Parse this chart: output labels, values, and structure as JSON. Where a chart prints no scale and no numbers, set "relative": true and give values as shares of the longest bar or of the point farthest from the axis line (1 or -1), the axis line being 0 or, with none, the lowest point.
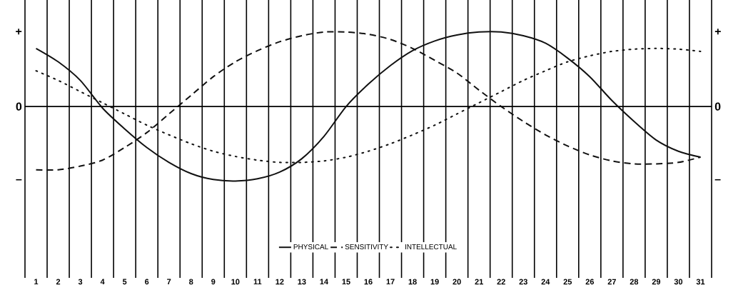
{
  "chart_data": {
    "type": "line",
    "relative": true,
    "categories": [
      "1",
      "2",
      "3",
      "4",
      "5",
      "6",
      "7",
      "8",
      "9",
      "10",
      "11",
      "12",
      "13",
      "14",
      "15",
      "16",
      "17",
      "18",
      "19",
      "20",
      "21",
      "22",
      "23",
      "24",
      "25",
      "26",
      "27",
      "28",
      "29",
      "30",
      "31"
    ],
    "annotations": [
      "+",
      "0",
      "–"
    ],
    "grid": "x",
    "legend": "bottom",
    "series": [
      {
        "name": "PHYSICAL",
        "color": "#111111",
        "line_style": "solid",
        "values": [
          0.78,
          0.6,
          0.35,
          -0.02,
          -0.3,
          -0.55,
          -0.75,
          -0.9,
          -0.98,
          -1.0,
          -0.97,
          -0.88,
          -0.7,
          -0.4,
          0,
          0.3,
          0.55,
          0.75,
          0.88,
          0.96,
          1.0,
          1.0,
          0.95,
          0.85,
          0.65,
          0.4,
          0.08,
          -0.2,
          -0.45,
          -0.6,
          -0.68
        ]
      },
      {
        "name": "SENSITIVITY",
        "color": "#111111",
        "line_style": "dashed",
        "values": [
          -0.85,
          -0.85,
          -0.8,
          -0.72,
          -0.55,
          -0.35,
          -0.1,
          0.15,
          0.4,
          0.6,
          0.75,
          0.87,
          0.95,
          1.0,
          1.0,
          0.97,
          0.9,
          0.78,
          0.62,
          0.45,
          0.22,
          0.0,
          -0.2,
          -0.38,
          -0.53,
          -0.65,
          -0.73,
          -0.77,
          -0.77,
          -0.75,
          -0.68
        ]
      },
      {
        "name": "INTELLECTUAL",
        "color": "#111111",
        "line_style": "dotted",
        "values": [
          0.48,
          0.35,
          0.2,
          0.05,
          -0.1,
          -0.25,
          -0.38,
          -0.5,
          -0.6,
          -0.67,
          -0.72,
          -0.75,
          -0.75,
          -0.73,
          -0.68,
          -0.6,
          -0.5,
          -0.38,
          -0.25,
          -0.1,
          0.05,
          0.2,
          0.35,
          0.48,
          0.6,
          0.68,
          0.74,
          0.77,
          0.78,
          0.77,
          0.74
        ]
      }
    ]
  }
}
